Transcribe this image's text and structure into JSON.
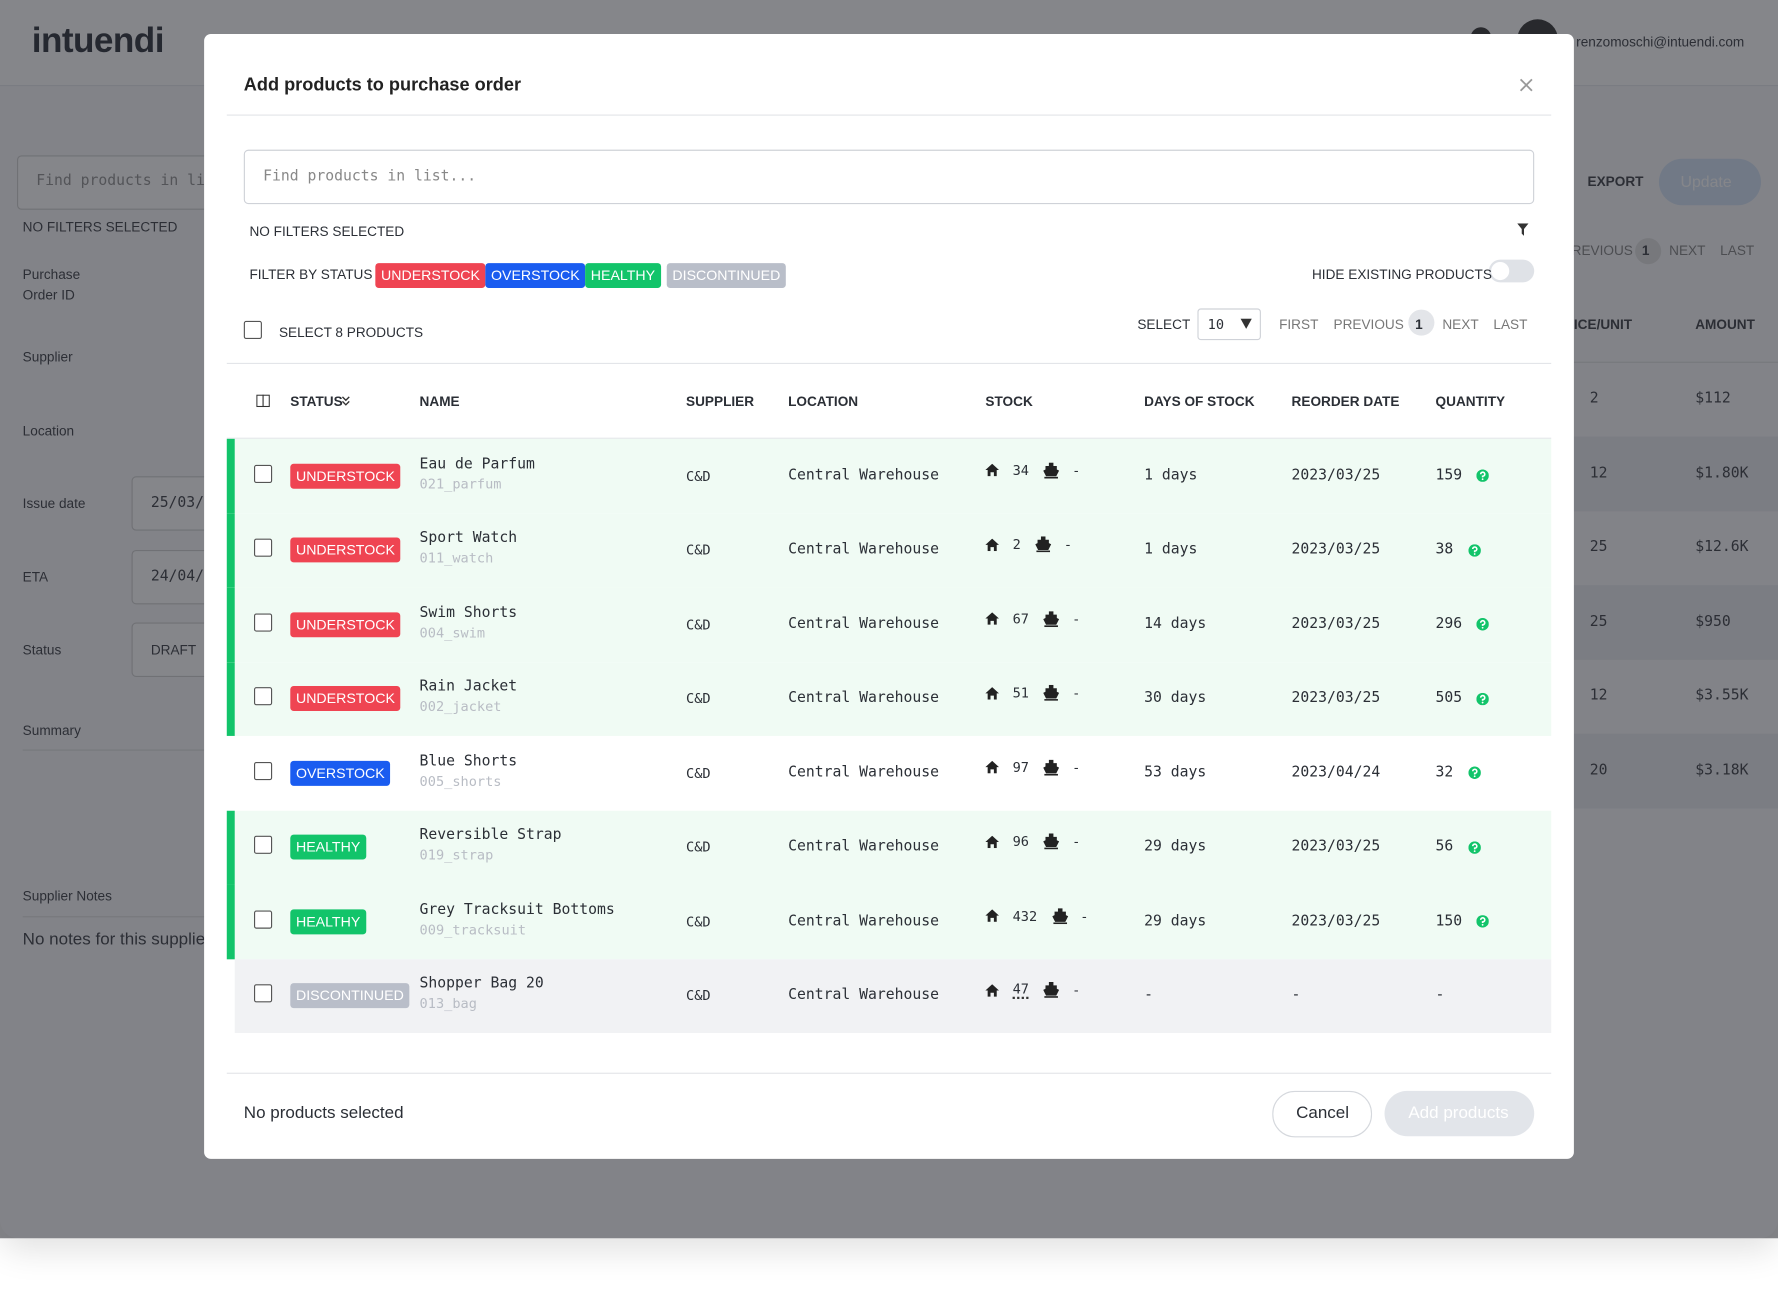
{
  "app": {
    "logo": "intuendi",
    "user_email": "renzomoschi@intuendi.com",
    "search_placeholder": "Find products in list",
    "filters_text": "NO FILTERS SELECTED",
    "fields": [
      {
        "label": "Purchase Order ID"
      },
      {
        "label": "Supplier"
      },
      {
        "label": "Location"
      },
      {
        "label": "Issue date",
        "value": "25/03/"
      },
      {
        "label": "ETA",
        "value": "24/04/"
      },
      {
        "label": "Status",
        "value": "DRAFT"
      },
      {
        "label": "Summary"
      },
      {
        "label": "Supplier Notes"
      }
    ],
    "notes": "No notes for this supplie",
    "export": "EXPORT",
    "update": "Update",
    "pagination": [
      "REVIOUS",
      "1",
      "NEXT",
      "LAST"
    ],
    "columns": [
      "ICE/UNIT",
      "AMOUNT"
    ],
    "rows": [
      [
        "2",
        "$112"
      ],
      [
        "12",
        "$1.80K"
      ],
      [
        "25",
        "$12.6K"
      ],
      [
        "25",
        "$950"
      ],
      [
        "12",
        "$3.55K"
      ],
      [
        "20",
        "$3.18K"
      ]
    ]
  },
  "modal": {
    "title": "Add products to purchase order",
    "search_placeholder": "Find products in list...",
    "filters_text": "NO FILTERS SELECTED",
    "filter_by_status": "FILTER BY STATUS",
    "statuses": [
      "UNDERSTOCK",
      "OVERSTOCK",
      "HEALTHY",
      "DISCONTINUED"
    ],
    "status_colors": {
      "UNDERSTOCK": "#ef4452",
      "OVERSTOCK": "#1a5cf0",
      "HEALTHY": "#12c46a",
      "DISCONTINUED": "#b9bec9"
    },
    "hide_existing": "HIDE EXISTING PRODUCTS",
    "select_all": "SELECT 8 PRODUCTS",
    "select_label": "SELECT",
    "page_size": "10",
    "pagination": [
      "FIRST",
      "PREVIOUS",
      "1",
      "NEXT",
      "LAST"
    ],
    "columns": [
      "STATUS",
      "NAME",
      "SUPPLIER",
      "LOCATION",
      "STOCK",
      "DAYS OF STOCK",
      "REORDER DATE",
      "QUANTITY"
    ],
    "rows": [
      {
        "status": "UNDERSTOCK",
        "name": "Eau de Parfum",
        "sku": "021_parfum",
        "supplier": "C&D",
        "location": "Central Warehouse",
        "stock": "34",
        "incoming": "-",
        "days": "1 days",
        "reorder_date": "2023/03/25",
        "quantity": "159"
      },
      {
        "status": "UNDERSTOCK",
        "name": "Sport Watch",
        "sku": "011_watch",
        "supplier": "C&D",
        "location": "Central Warehouse",
        "stock": "2",
        "incoming": "-",
        "days": "1 days",
        "reorder_date": "2023/03/25",
        "quantity": "38"
      },
      {
        "status": "UNDERSTOCK",
        "name": "Swim Shorts",
        "sku": "004_swim",
        "supplier": "C&D",
        "location": "Central Warehouse",
        "stock": "67",
        "incoming": "-",
        "days": "14 days",
        "reorder_date": "2023/03/25",
        "quantity": "296"
      },
      {
        "status": "UNDERSTOCK",
        "name": "Rain Jacket",
        "sku": "002_jacket",
        "supplier": "C&D",
        "location": "Central Warehouse",
        "stock": "51",
        "incoming": "-",
        "days": "30 days",
        "reorder_date": "2023/03/25",
        "quantity": "505"
      },
      {
        "status": "OVERSTOCK",
        "name": "Blue Shorts",
        "sku": "005_shorts",
        "supplier": "C&D",
        "location": "Central Warehouse",
        "stock": "97",
        "incoming": "-",
        "days": "53 days",
        "reorder_date": "2023/04/24",
        "quantity": "32"
      },
      {
        "status": "HEALTHY",
        "name": "Reversible Strap",
        "sku": "019_strap",
        "supplier": "C&D",
        "location": "Central Warehouse",
        "stock": "96",
        "incoming": "-",
        "days": "29 days",
        "reorder_date": "2023/03/25",
        "quantity": "56"
      },
      {
        "status": "HEALTHY",
        "name": "Grey Tracksuit Bottoms",
        "sku": "009_tracksuit",
        "supplier": "C&D",
        "location": "Central Warehouse",
        "stock": "432",
        "incoming": "-",
        "days": "29 days",
        "reorder_date": "2023/03/25",
        "quantity": "150"
      },
      {
        "status": "DISCONTINUED",
        "name": "Shopper Bag 20",
        "sku": "013_bag",
        "supplier": "C&D",
        "location": "Central Warehouse",
        "stock": "47",
        "incoming": "-",
        "days": "-",
        "reorder_date": "-",
        "quantity": "-"
      }
    ],
    "footer_text": "No products selected",
    "cancel": "Cancel",
    "add": "Add products"
  }
}
